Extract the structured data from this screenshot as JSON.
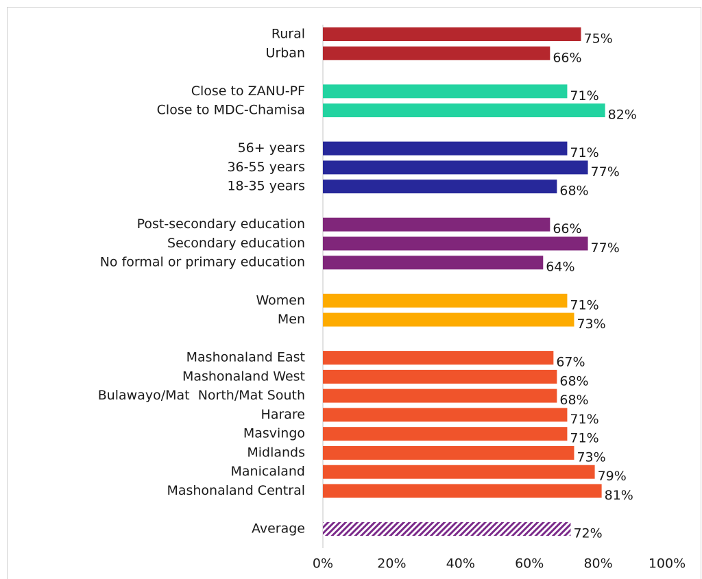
{
  "chart_data": {
    "type": "bar",
    "orientation": "horizontal",
    "categories": [
      "Rural",
      "Urban",
      null,
      "Close to ZANU-PF",
      "Close to MDC-Chamisa",
      null,
      "56+ years",
      "36-55 years",
      "18-35 years",
      null,
      "Post-secondary education",
      "Secondary education",
      "No formal or primary education",
      null,
      "Women",
      "Men",
      null,
      "Mashonaland East",
      "Mashonaland West",
      "Bulawayo/Mat  North/Mat South",
      "Harare",
      "Masvingo",
      "Midlands",
      "Manicaland",
      "Mashonaland Central",
      null,
      "Average"
    ],
    "values": [
      75,
      66,
      null,
      71,
      82,
      null,
      71,
      77,
      68,
      null,
      66,
      77,
      64,
      null,
      71,
      73,
      null,
      67,
      68,
      68,
      71,
      71,
      73,
      79,
      81,
      null,
      72
    ],
    "value_labels": [
      "75%",
      "66%",
      null,
      "71%",
      "82%",
      null,
      "71%",
      "77%",
      "68%",
      null,
      "66%",
      "77%",
      "64%",
      null,
      "71%",
      "73%",
      null,
      "67%",
      "68%",
      "68%",
      "71%",
      "71%",
      "73%",
      "79%",
      "81%",
      null,
      "72%"
    ],
    "colors": [
      "#b5272d",
      "#b5272d",
      null,
      "#22d3a0",
      "#22d3a0",
      null,
      "#27289a",
      "#27289a",
      "#27289a",
      null,
      "#80267a",
      "#80267a",
      "#80267a",
      null,
      "#fdab00",
      "#fdab00",
      null,
      "#f0542b",
      "#f0542b",
      "#f0542b",
      "#f0542b",
      "#f0542b",
      "#f0542b",
      "#f0542b",
      "#f0542b",
      null,
      "#7b2a8a"
    ],
    "bar_styles": [
      "solid",
      "solid",
      null,
      "solid",
      "solid",
      null,
      "solid",
      "solid",
      "solid",
      null,
      "solid",
      "solid",
      "solid",
      null,
      "solid",
      "solid",
      null,
      "solid",
      "solid",
      "solid",
      "solid",
      "solid",
      "solid",
      "solid",
      "solid",
      null,
      "hatched"
    ],
    "xlim": [
      0,
      100
    ],
    "xticks": [
      {
        "value": 0,
        "label": "0%"
      },
      {
        "value": 20,
        "label": "20%"
      },
      {
        "value": 40,
        "label": "40%"
      },
      {
        "value": 60,
        "label": "60%"
      },
      {
        "value": 80,
        "label": "80%"
      },
      {
        "value": 100,
        "label": "100%"
      }
    ],
    "grid": false
  }
}
